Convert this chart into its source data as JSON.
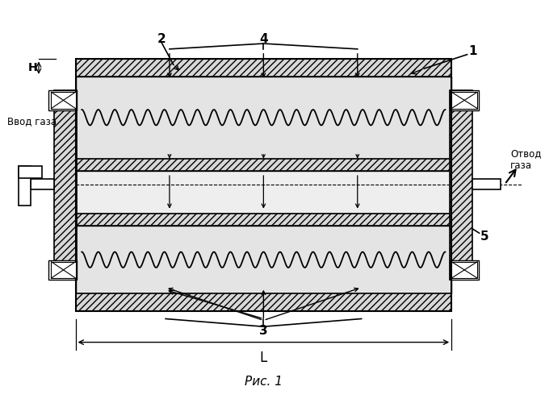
{
  "title": "Рис. 1",
  "label_H": "H",
  "label_vvod": "Ввод газа",
  "label_otvod": "Отвод\nгаза",
  "label_L": "L",
  "label_1": "1",
  "label_2": "2",
  "label_3": "3",
  "label_4": "4",
  "label_5": "5",
  "bg_color": "#ffffff"
}
